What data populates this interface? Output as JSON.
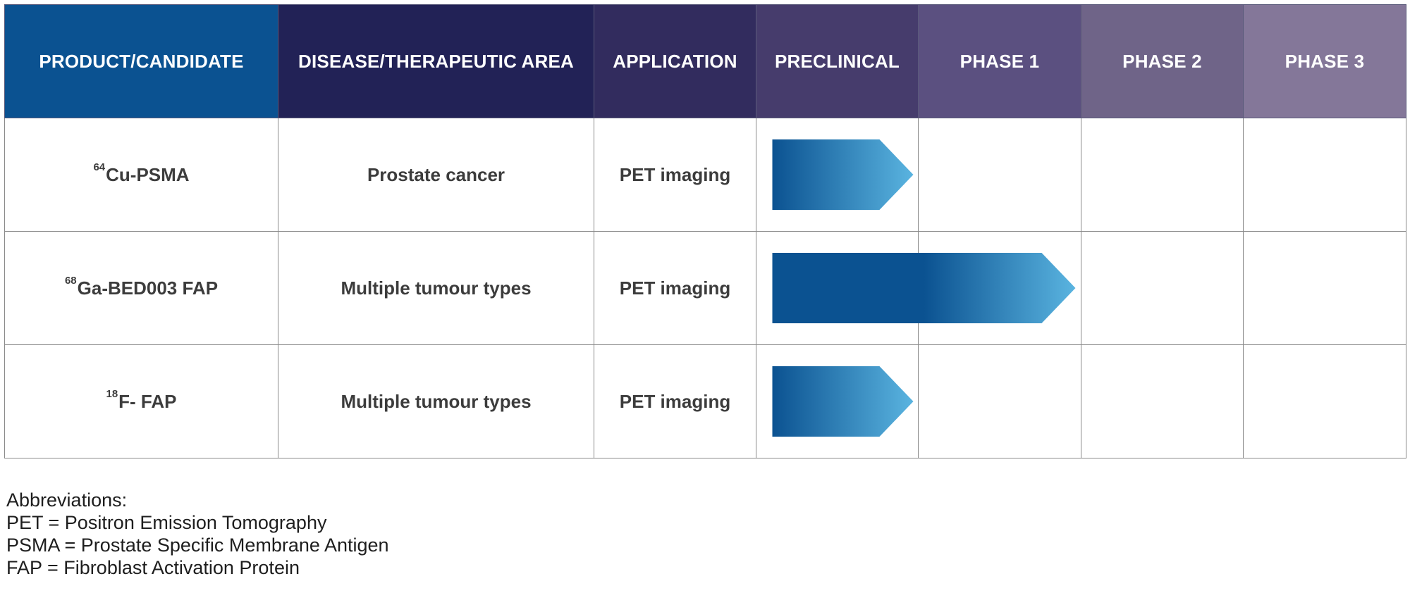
{
  "chart_data": {
    "type": "table",
    "columns": [
      {
        "label": "PRODUCT/CANDIDATE",
        "color": "#0b5291"
      },
      {
        "label": "DISEASE/THERAPEUTIC AREA",
        "color": "#222256"
      },
      {
        "label": "APPLICATION",
        "color": "#322c5e"
      },
      {
        "label": "PRECLINICAL",
        "color": "#463c6c"
      },
      {
        "label": "PHASE 1",
        "color": "#5b5080"
      },
      {
        "label": "PHASE 2",
        "color": "#6f6488"
      },
      {
        "label": "PHASE 3",
        "color": "#847799"
      }
    ],
    "stages": [
      "PRECLINICAL",
      "PHASE 1",
      "PHASE 2",
      "PHASE 3"
    ],
    "rows": [
      {
        "isotope": "64",
        "product": "Cu-PSMA",
        "disease": "Prostate cancer",
        "application": "PET imaging",
        "progress_stages": 1.0
      },
      {
        "isotope": "68",
        "product": "Ga-BED003 FAP",
        "disease": "Multiple tumour types",
        "application": "PET imaging",
        "progress_stages": 2.0
      },
      {
        "isotope": "18",
        "product": "F- FAP",
        "disease": "Multiple tumour types",
        "application": "PET imaging",
        "progress_stages": 1.0
      }
    ],
    "bar_colors": {
      "dark": "#0b5291",
      "light": "#5ab4e0"
    }
  },
  "abbreviations": {
    "title": "Abbreviations:",
    "items": [
      "PET = Positron Emission Tomography",
      "PSMA = Prostate Specific Membrane Antigen",
      "FAP = Fibroblast Activation Protein"
    ]
  }
}
